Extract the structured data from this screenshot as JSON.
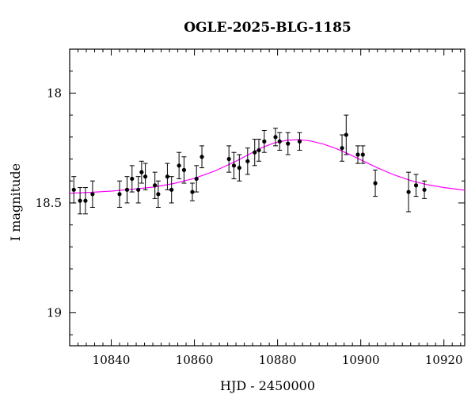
{
  "chart_data": {
    "type": "scatter",
    "title": "OGLE-2025-BLG-1185",
    "xlabel": "HJD - 2450000",
    "ylabel": "I magnitude",
    "xlim": [
      10830,
      10925
    ],
    "ylim": [
      19.15,
      17.8
    ],
    "y_inverted": true,
    "grid": false,
    "x_major_ticks": [
      10840,
      10860,
      10880,
      10900,
      10920
    ],
    "x_tick_labels": [
      "10840",
      "10860",
      "10880",
      "10900",
      "10920"
    ],
    "x_minor_step": 2,
    "y_major_ticks": [
      18,
      18.5,
      19
    ],
    "y_tick_labels": [
      "18",
      "18.5",
      "19"
    ],
    "y_minor_step": 0.1,
    "colors": {
      "points": "#000000",
      "model": "#ff00ff"
    },
    "series": [
      {
        "type": "errorbar",
        "points": [
          {
            "x": 10831.0,
            "y": 18.44,
            "err": 0.06
          },
          {
            "x": 10832.5,
            "y": 18.49,
            "err": 0.06
          },
          {
            "x": 10833.8,
            "y": 18.49,
            "err": 0.06
          },
          {
            "x": 10835.5,
            "y": 18.46,
            "err": 0.06
          },
          {
            "x": 10842.0,
            "y": 18.46,
            "err": 0.06
          },
          {
            "x": 10843.8,
            "y": 18.44,
            "err": 0.06
          },
          {
            "x": 10845.0,
            "y": 18.39,
            "err": 0.06
          },
          {
            "x": 10846.5,
            "y": 18.44,
            "err": 0.06
          },
          {
            "x": 10847.3,
            "y": 18.36,
            "err": 0.05
          },
          {
            "x": 10848.2,
            "y": 18.38,
            "err": 0.06
          },
          {
            "x": 10850.5,
            "y": 18.42,
            "err": 0.06
          },
          {
            "x": 10851.3,
            "y": 18.46,
            "err": 0.06
          },
          {
            "x": 10853.5,
            "y": 18.38,
            "err": 0.06
          },
          {
            "x": 10854.5,
            "y": 18.44,
            "err": 0.06
          },
          {
            "x": 10856.3,
            "y": 18.33,
            "err": 0.06
          },
          {
            "x": 10857.5,
            "y": 18.35,
            "err": 0.06
          },
          {
            "x": 10859.5,
            "y": 18.45,
            "err": 0.04
          },
          {
            "x": 10860.5,
            "y": 18.39,
            "err": 0.06
          },
          {
            "x": 10861.8,
            "y": 18.29,
            "err": 0.05
          },
          {
            "x": 10868.3,
            "y": 18.3,
            "err": 0.06
          },
          {
            "x": 10869.5,
            "y": 18.33,
            "err": 0.06
          },
          {
            "x": 10870.8,
            "y": 18.34,
            "err": 0.06
          },
          {
            "x": 10872.8,
            "y": 18.31,
            "err": 0.06
          },
          {
            "x": 10874.5,
            "y": 18.27,
            "err": 0.06
          },
          {
            "x": 10875.5,
            "y": 18.26,
            "err": 0.05
          },
          {
            "x": 10876.8,
            "y": 18.22,
            "err": 0.05
          },
          {
            "x": 10879.5,
            "y": 18.2,
            "err": 0.04
          },
          {
            "x": 10880.5,
            "y": 18.22,
            "err": 0.04
          },
          {
            "x": 10882.5,
            "y": 18.23,
            "err": 0.05
          },
          {
            "x": 10885.3,
            "y": 18.22,
            "err": 0.04
          },
          {
            "x": 10895.5,
            "y": 18.25,
            "err": 0.06
          },
          {
            "x": 10896.5,
            "y": 18.19,
            "err": 0.09
          },
          {
            "x": 10899.3,
            "y": 18.28,
            "err": 0.04
          },
          {
            "x": 10900.5,
            "y": 18.28,
            "err": 0.04
          },
          {
            "x": 10903.5,
            "y": 18.41,
            "err": 0.06
          },
          {
            "x": 10911.5,
            "y": 18.45,
            "err": 0.09
          },
          {
            "x": 10913.3,
            "y": 18.42,
            "err": 0.05
          },
          {
            "x": 10915.3,
            "y": 18.44,
            "err": 0.04
          }
        ]
      },
      {
        "type": "line",
        "points": [
          {
            "x": 10830,
            "y": 18.456
          },
          {
            "x": 10835,
            "y": 18.452
          },
          {
            "x": 10840,
            "y": 18.446
          },
          {
            "x": 10845,
            "y": 18.438
          },
          {
            "x": 10850,
            "y": 18.428
          },
          {
            "x": 10855,
            "y": 18.412
          },
          {
            "x": 10860,
            "y": 18.388
          },
          {
            "x": 10865,
            "y": 18.354
          },
          {
            "x": 10870,
            "y": 18.31
          },
          {
            "x": 10873,
            "y": 18.28
          },
          {
            "x": 10876,
            "y": 18.25
          },
          {
            "x": 10879,
            "y": 18.228
          },
          {
            "x": 10882,
            "y": 18.215
          },
          {
            "x": 10885,
            "y": 18.212
          },
          {
            "x": 10888,
            "y": 18.218
          },
          {
            "x": 10891,
            "y": 18.232
          },
          {
            "x": 10894,
            "y": 18.252
          },
          {
            "x": 10897,
            "y": 18.276
          },
          {
            "x": 10900,
            "y": 18.304
          },
          {
            "x": 10904,
            "y": 18.34
          },
          {
            "x": 10908,
            "y": 18.372
          },
          {
            "x": 10912,
            "y": 18.398
          },
          {
            "x": 10916,
            "y": 18.417
          },
          {
            "x": 10920,
            "y": 18.43
          },
          {
            "x": 10925,
            "y": 18.442
          }
        ]
      }
    ]
  }
}
